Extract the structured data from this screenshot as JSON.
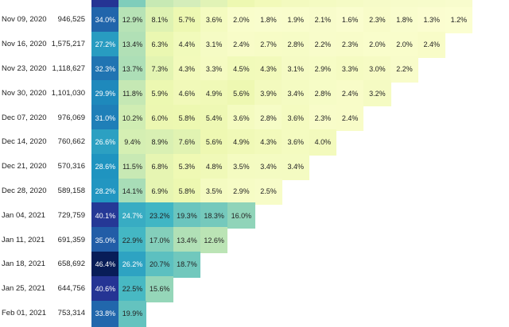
{
  "chart_data": {
    "type": "heatmap",
    "title": "",
    "xlabel": "",
    "ylabel": "",
    "color_scale": [
      "#ffffd9",
      "#edf8b1",
      "#c7e9b4",
      "#7fcdbb",
      "#41b6c4",
      "#1d91c0",
      "#225ea8",
      "#253494",
      "#081d58"
    ],
    "value_range": [
      0,
      46.4
    ],
    "top_strip_colors": [
      "#253494",
      "#7fcdbb",
      "#c7e9b4",
      "#d4edba",
      "#e1f3b6",
      "#edf8b1",
      "#f2fab9",
      "#f3fabf",
      "#f4fbc2",
      "#f5fbc5",
      "#f6fbc8",
      "#f7fcca",
      "#f7fccb",
      "#f8fccd"
    ],
    "rows": [
      {
        "label": "Nov 09, 2020",
        "size": "946,525",
        "values": [
          "34.0%",
          "12.9%",
          "8.1%",
          "5.7%",
          "3.6%",
          "2.0%",
          "1.8%",
          "1.9%",
          "2.1%",
          "1.6%",
          "2.3%",
          "1.8%",
          "1.3%",
          "1.2%"
        ]
      },
      {
        "label": "Nov 16, 2020",
        "size": "1,575,217",
        "values": [
          "27.2%",
          "13.4%",
          "6.3%",
          "4.4%",
          "3.1%",
          "2.4%",
          "2.7%",
          "2.8%",
          "2.2%",
          "2.3%",
          "2.0%",
          "2.0%",
          "2.4%"
        ]
      },
      {
        "label": "Nov 23, 2020",
        "size": "1,118,627",
        "values": [
          "32.3%",
          "13.7%",
          "7.3%",
          "4.3%",
          "3.3%",
          "4.5%",
          "4.3%",
          "3.1%",
          "2.9%",
          "3.3%",
          "3.0%",
          "2.2%"
        ]
      },
      {
        "label": "Nov 30, 2020",
        "size": "1,101,030",
        "values": [
          "29.9%",
          "11.8%",
          "5.9%",
          "4.6%",
          "4.9%",
          "5.6%",
          "3.9%",
          "3.4%",
          "2.8%",
          "2.4%",
          "3.2%"
        ]
      },
      {
        "label": "Dec 07, 2020",
        "size": "976,069",
        "values": [
          "31.0%",
          "10.2%",
          "6.0%",
          "5.8%",
          "5.4%",
          "3.6%",
          "2.8%",
          "3.6%",
          "2.3%",
          "2.4%"
        ]
      },
      {
        "label": "Dec 14, 2020",
        "size": "760,662",
        "values": [
          "26.6%",
          "9.4%",
          "8.9%",
          "7.6%",
          "5.6%",
          "4.9%",
          "4.3%",
          "3.6%",
          "4.0%"
        ]
      },
      {
        "label": "Dec 21, 2020",
        "size": "570,316",
        "values": [
          "28.6%",
          "11.5%",
          "6.8%",
          "5.3%",
          "4.8%",
          "3.5%",
          "3.4%",
          "3.4%"
        ]
      },
      {
        "label": "Dec 28, 2020",
        "size": "589,158",
        "values": [
          "28.2%",
          "14.1%",
          "6.9%",
          "5.8%",
          "3.5%",
          "2.9%",
          "2.5%"
        ]
      },
      {
        "label": "Jan 04, 2021",
        "size": "729,759",
        "values": [
          "40.1%",
          "24.7%",
          "23.2%",
          "19.3%",
          "18.3%",
          "16.0%"
        ]
      },
      {
        "label": "Jan 11, 2021",
        "size": "691,359",
        "values": [
          "35.0%",
          "22.9%",
          "17.0%",
          "13.4%",
          "12.6%"
        ]
      },
      {
        "label": "Jan 18, 2021",
        "size": "658,692",
        "values": [
          "46.4%",
          "26.2%",
          "20.7%",
          "18.7%"
        ]
      },
      {
        "label": "Jan 25, 2021",
        "size": "644,756",
        "values": [
          "40.6%",
          "22.5%",
          "15.6%"
        ]
      },
      {
        "label": "Feb 01, 2021",
        "size": "753,314",
        "values": [
          "33.8%",
          "19.9%"
        ]
      }
    ]
  }
}
